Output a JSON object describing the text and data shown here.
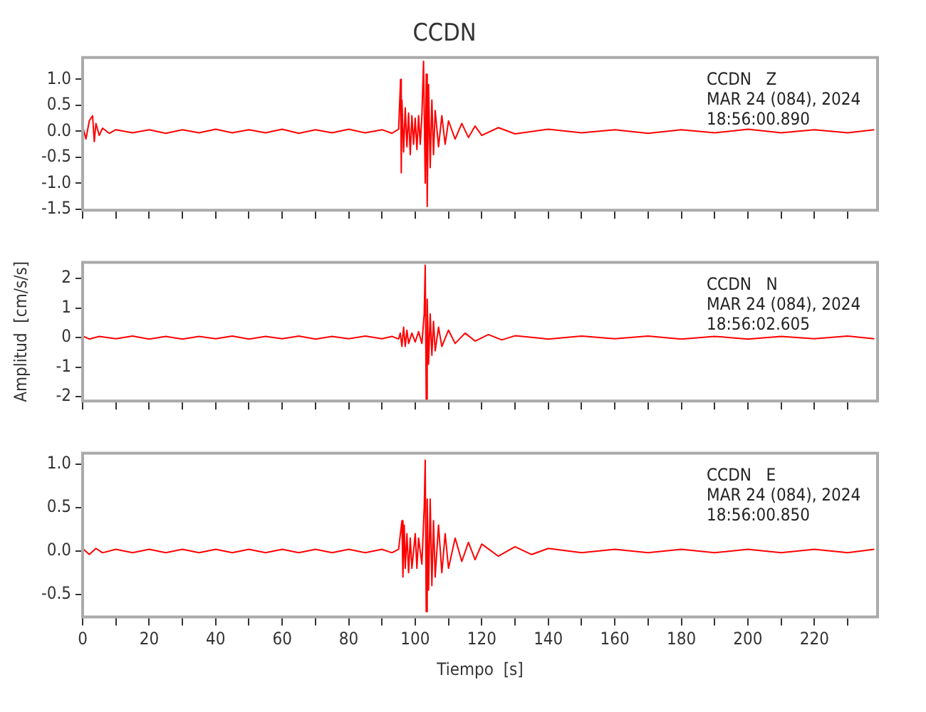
{
  "chart_data": [
    {
      "type": "line",
      "title": "CCDN",
      "annotations": [
        "CCDN   Z",
        "MAR 24 (084), 2024",
        "18:56:00.890"
      ],
      "tick_labels": "y",
      "xlim": [
        0,
        239
      ],
      "xticks": [
        0,
        {
          "value": 10,
          "label": null
        },
        20,
        {
          "value": 30,
          "label": null
        },
        40,
        {
          "value": 50,
          "label": null
        },
        60,
        {
          "value": 70,
          "label": null
        },
        80,
        {
          "value": 90,
          "label": null
        },
        100,
        {
          "value": 110,
          "label": null
        },
        120,
        {
          "value": 130,
          "label": null
        },
        140,
        {
          "value": 150,
          "label": null
        },
        160,
        {
          "value": 170,
          "label": null
        },
        180,
        {
          "value": 190,
          "label": null
        },
        200,
        {
          "value": 210,
          "label": null
        },
        220,
        {
          "value": 230,
          "label": null
        }
      ],
      "ylim": [
        -1.52,
        1.42
      ],
      "yticks": [
        {
          "value": -1.5,
          "label": "-1.5"
        },
        {
          "value": -1,
          "label": "-1.0"
        },
        {
          "value": -0.5,
          "label": "-0.5"
        },
        {
          "value": 0,
          "label": "0.0"
        },
        {
          "value": 0.5,
          "label": "0.5"
        },
        {
          "value": 1,
          "label": "1.0"
        }
      ],
      "series": [
        {
          "color": "#ff0000",
          "x": [
            0,
            1,
            2,
            3,
            3.5,
            4,
            5,
            6,
            8,
            10,
            15,
            20,
            25,
            30,
            35,
            40,
            45,
            50,
            55,
            60,
            65,
            70,
            75,
            80,
            85,
            90,
            93,
            95,
            95.6,
            95.8,
            96,
            96.5,
            97,
            97.5,
            98,
            98.5,
            99,
            99.5,
            100,
            100.5,
            101,
            101.5,
            102,
            102.5,
            103,
            103.3,
            103.6,
            104,
            104.5,
            105,
            105.5,
            106,
            107,
            108,
            109,
            110,
            112,
            114,
            116,
            118,
            120,
            125,
            130,
            140,
            150,
            160,
            170,
            180,
            190,
            200,
            210,
            220,
            230,
            238
          ],
          "values": [
            0.1,
            -0.15,
            0.2,
            0.3,
            -0.2,
            0.15,
            -0.08,
            0.06,
            -0.04,
            0.03,
            -0.03,
            0.03,
            -0.04,
            0.03,
            -0.03,
            0.04,
            -0.03,
            0.03,
            -0.03,
            0.04,
            -0.04,
            0.03,
            -0.03,
            0.04,
            -0.03,
            0.03,
            -0.04,
            0.04,
            1.0,
            -0.8,
            0.6,
            -0.4,
            0.45,
            -0.3,
            0.35,
            -0.45,
            0.3,
            -0.25,
            0.25,
            -0.35,
            0.3,
            -0.25,
            0.3,
            1.35,
            -1.0,
            1.1,
            -1.45,
            0.9,
            -0.7,
            0.6,
            -0.45,
            0.4,
            -0.3,
            0.3,
            -0.25,
            0.2,
            -0.15,
            0.15,
            -0.12,
            0.1,
            -0.08,
            0.07,
            -0.05,
            0.04,
            -0.03,
            0.03,
            -0.04,
            0.03,
            -0.03,
            0.04,
            -0.03,
            0.03,
            -0.03,
            0.03
          ]
        }
      ]
    },
    {
      "type": "line",
      "ylabel": "Amplitud  [cm/s/s]",
      "annotations": [
        "CCDN   N",
        "MAR 24 (084), 2024",
        "18:56:02.605"
      ],
      "tick_labels": "y",
      "xlim": [
        0,
        239
      ],
      "xticks": [
        0,
        {
          "value": 10,
          "label": null
        },
        20,
        {
          "value": 30,
          "label": null
        },
        40,
        {
          "value": 50,
          "label": null
        },
        60,
        {
          "value": 70,
          "label": null
        },
        80,
        {
          "value": 90,
          "label": null
        },
        100,
        {
          "value": 110,
          "label": null
        },
        120,
        {
          "value": 130,
          "label": null
        },
        140,
        {
          "value": 150,
          "label": null
        },
        160,
        {
          "value": 170,
          "label": null
        },
        180,
        {
          "value": 190,
          "label": null
        },
        200,
        {
          "value": 210,
          "label": null
        },
        220,
        {
          "value": 230,
          "label": null
        }
      ],
      "ylim": [
        -2.15,
        2.55
      ],
      "yticks": [
        -2,
        -1,
        0,
        1,
        2
      ],
      "series": [
        {
          "color": "#ff0000",
          "x": [
            0,
            2,
            5,
            10,
            15,
            20,
            25,
            30,
            35,
            40,
            45,
            50,
            55,
            60,
            65,
            70,
            75,
            80,
            85,
            90,
            93,
            95,
            95.5,
            96,
            96.5,
            97,
            97.5,
            98,
            99,
            100,
            101,
            102,
            102.7,
            103,
            103.3,
            103.6,
            104,
            104.5,
            105,
            105.5,
            106,
            107,
            108,
            110,
            112,
            115,
            118,
            122,
            126,
            130,
            140,
            150,
            160,
            170,
            180,
            190,
            200,
            210,
            220,
            230,
            238
          ],
          "values": [
            0.05,
            -0.05,
            0.04,
            -0.04,
            0.05,
            -0.05,
            0.04,
            -0.05,
            0.04,
            -0.04,
            0.05,
            -0.05,
            0.04,
            -0.04,
            0.05,
            -0.05,
            0.04,
            -0.04,
            0.05,
            -0.04,
            0.04,
            -0.05,
            0.15,
            -0.3,
            0.35,
            -0.3,
            0.25,
            -0.2,
            0.15,
            -0.15,
            0.2,
            -0.2,
            0.8,
            2.45,
            -2.1,
            1.3,
            -0.9,
            0.8,
            -0.6,
            0.55,
            -0.45,
            0.35,
            -0.3,
            0.25,
            -0.2,
            0.15,
            -0.12,
            0.1,
            -0.08,
            0.06,
            -0.05,
            0.05,
            -0.04,
            0.05,
            -0.05,
            0.04,
            -0.05,
            0.04,
            -0.04,
            0.05,
            -0.04
          ]
        }
      ]
    },
    {
      "type": "line",
      "xlabel": "Tiempo  [s]",
      "annotations": [
        "CCDN   E",
        "MAR 24 (084), 2024",
        "18:56:00.850"
      ],
      "xlim": [
        0,
        239
      ],
      "xticks": [
        0,
        {
          "value": 10,
          "label": null
        },
        20,
        {
          "value": 30,
          "label": null
        },
        40,
        {
          "value": 50,
          "label": null
        },
        60,
        {
          "value": 70,
          "label": null
        },
        80,
        {
          "value": 90,
          "label": null
        },
        100,
        {
          "value": 110,
          "label": null
        },
        120,
        {
          "value": 130,
          "label": null
        },
        140,
        {
          "value": 150,
          "label": null
        },
        160,
        {
          "value": 170,
          "label": null
        },
        180,
        {
          "value": 190,
          "label": null
        },
        200,
        {
          "value": 210,
          "label": null
        },
        220,
        {
          "value": 230,
          "label": null
        }
      ],
      "ylim": [
        -0.76,
        1.13
      ],
      "yticks": [
        {
          "value": -0.5,
          "label": "-0.5"
        },
        {
          "value": 0,
          "label": "0.0"
        },
        {
          "value": 0.5,
          "label": "0.5"
        },
        {
          "value": 1,
          "label": "1.0"
        }
      ],
      "series": [
        {
          "color": "#ff0000",
          "x": [
            0,
            2,
            4,
            6,
            10,
            15,
            20,
            25,
            30,
            35,
            40,
            45,
            50,
            55,
            60,
            65,
            70,
            75,
            80,
            85,
            90,
            93,
            95,
            96,
            96.3,
            96.7,
            97,
            97.5,
            98,
            98.5,
            99,
            100,
            100.5,
            101,
            102,
            102.7,
            103,
            103.3,
            103.6,
            104,
            104.5,
            105,
            105.5,
            106,
            107,
            108,
            109,
            110,
            112,
            114,
            116,
            118,
            120,
            125,
            130,
            135,
            140,
            150,
            160,
            170,
            180,
            190,
            200,
            210,
            220,
            230,
            238
          ],
          "values": [
            0.03,
            -0.04,
            0.03,
            -0.02,
            0.02,
            -0.02,
            0.02,
            -0.02,
            0.02,
            -0.02,
            0.02,
            -0.02,
            0.02,
            -0.02,
            0.02,
            -0.02,
            0.02,
            -0.02,
            0.02,
            -0.02,
            0.02,
            -0.02,
            0.02,
            0.35,
            -0.3,
            0.3,
            -0.2,
            0.2,
            -0.25,
            0.15,
            -0.2,
            0.2,
            -0.2,
            0.15,
            -0.15,
            0.5,
            1.05,
            -0.7,
            0.6,
            -0.45,
            0.6,
            -0.4,
            0.35,
            -0.3,
            0.3,
            -0.25,
            0.2,
            -0.2,
            0.15,
            -0.12,
            0.1,
            -0.1,
            0.08,
            -0.06,
            0.05,
            -0.04,
            0.03,
            -0.02,
            0.02,
            -0.02,
            0.02,
            -0.02,
            0.02,
            -0.02,
            0.02,
            -0.02,
            0.02
          ]
        }
      ]
    }
  ]
}
